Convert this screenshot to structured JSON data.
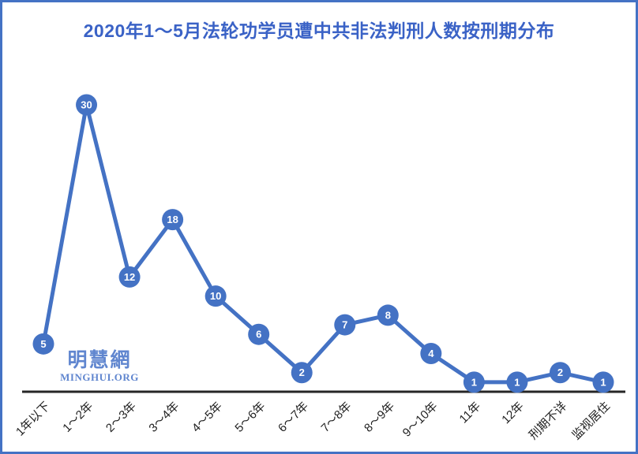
{
  "frame": {
    "border_color": "#4472C4",
    "background_color": "#FFFFFF"
  },
  "watermark": {
    "cjk": "明慧網",
    "latin": "MINGHUI.ORG",
    "color": "#4F79CA"
  },
  "chart_data": {
    "type": "line",
    "title": "2020年1～5月法轮功学员遭中共非法判刑人数按刑期分布",
    "title_color": "#3A62C6",
    "categories": [
      "1年以下",
      "1～2年",
      "2～3年",
      "3～4年",
      "4～5年",
      "5～6年",
      "6～7年",
      "7～8年",
      "8～9年",
      "9～10年",
      "11年",
      "12年",
      "刑期不详",
      "监视居住"
    ],
    "values": [
      5,
      30,
      12,
      18,
      10,
      6,
      2,
      7,
      8,
      4,
      1,
      1,
      2,
      1
    ],
    "xlabel": "",
    "ylabel": "",
    "ylim": [
      0,
      30
    ],
    "grid": false,
    "legend": false,
    "line_color": "#4472C4",
    "marker": "circle-with-value-label",
    "value_label_color": "#FFFFFF",
    "axis_line_color": "#262626",
    "tick_label_color": "#1F1F1F"
  }
}
